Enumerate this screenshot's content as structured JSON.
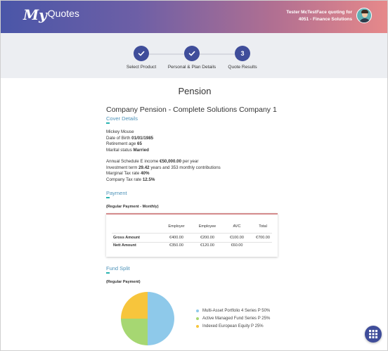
{
  "app": {
    "logo_my": "My",
    "logo_quotes": "Quotes"
  },
  "user": {
    "line1": "Tester McTestFace quoting for",
    "line2": "4051 - Finance Solutions"
  },
  "steps": [
    {
      "label": "Select Product",
      "state": "done"
    },
    {
      "label": "Personal & Plan Details",
      "state": "done"
    },
    {
      "label": "Quote Results",
      "state": "current",
      "number": "3"
    }
  ],
  "page_title": "Pension",
  "company_title": "Company Pension - Complete Solutions Company 1",
  "cover": {
    "heading": "Cover Details",
    "name": "Mickey Mouse",
    "dob_label": "Date of Birth",
    "dob": "01/01/1985",
    "retirement_label": "Retirement age",
    "retirement": "65",
    "marital_label": "Marital status",
    "marital": "Married",
    "annual_label": "Annual Schedule E income",
    "annual": "€50,000.00",
    "annual_suffix": "per year",
    "term_label": "Investment term",
    "term_years": "29.42",
    "term_mid": "years and",
    "term_contrib": "353 monthly contributions",
    "mtr_label": "Marginal Tax rate",
    "mtr": "40%",
    "ctr_label": "Company Tax rate",
    "ctr": "12.5%"
  },
  "payment": {
    "heading": "Payment",
    "subtitle": "(Regular Payment - Monthly)",
    "columns": [
      "Employer",
      "Employee",
      "AVC",
      "Total"
    ],
    "rows": [
      {
        "label": "Gross Amount",
        "values": [
          "€400.00",
          "€200.00",
          "€100.00",
          "€700.00"
        ]
      },
      {
        "label": "Nett Amount",
        "values": [
          "€350.00",
          "€120.00",
          "€60.00",
          ""
        ]
      }
    ]
  },
  "fund_split": {
    "heading": "Fund Split",
    "subtitle": "(Regular Payment)",
    "slices": [
      {
        "label": "Multi-Asset Portfolio 4 Series P 50%",
        "value": 50,
        "color": "#8ec9ea"
      },
      {
        "label": "Active Managed Fund Series P 25%",
        "value": 25,
        "color": "#a6d772"
      },
      {
        "label": "Indexed European Equity P 25%",
        "value": 25,
        "color": "#f7c53c"
      }
    ]
  },
  "fab": {
    "icon": "grid-icon"
  }
}
